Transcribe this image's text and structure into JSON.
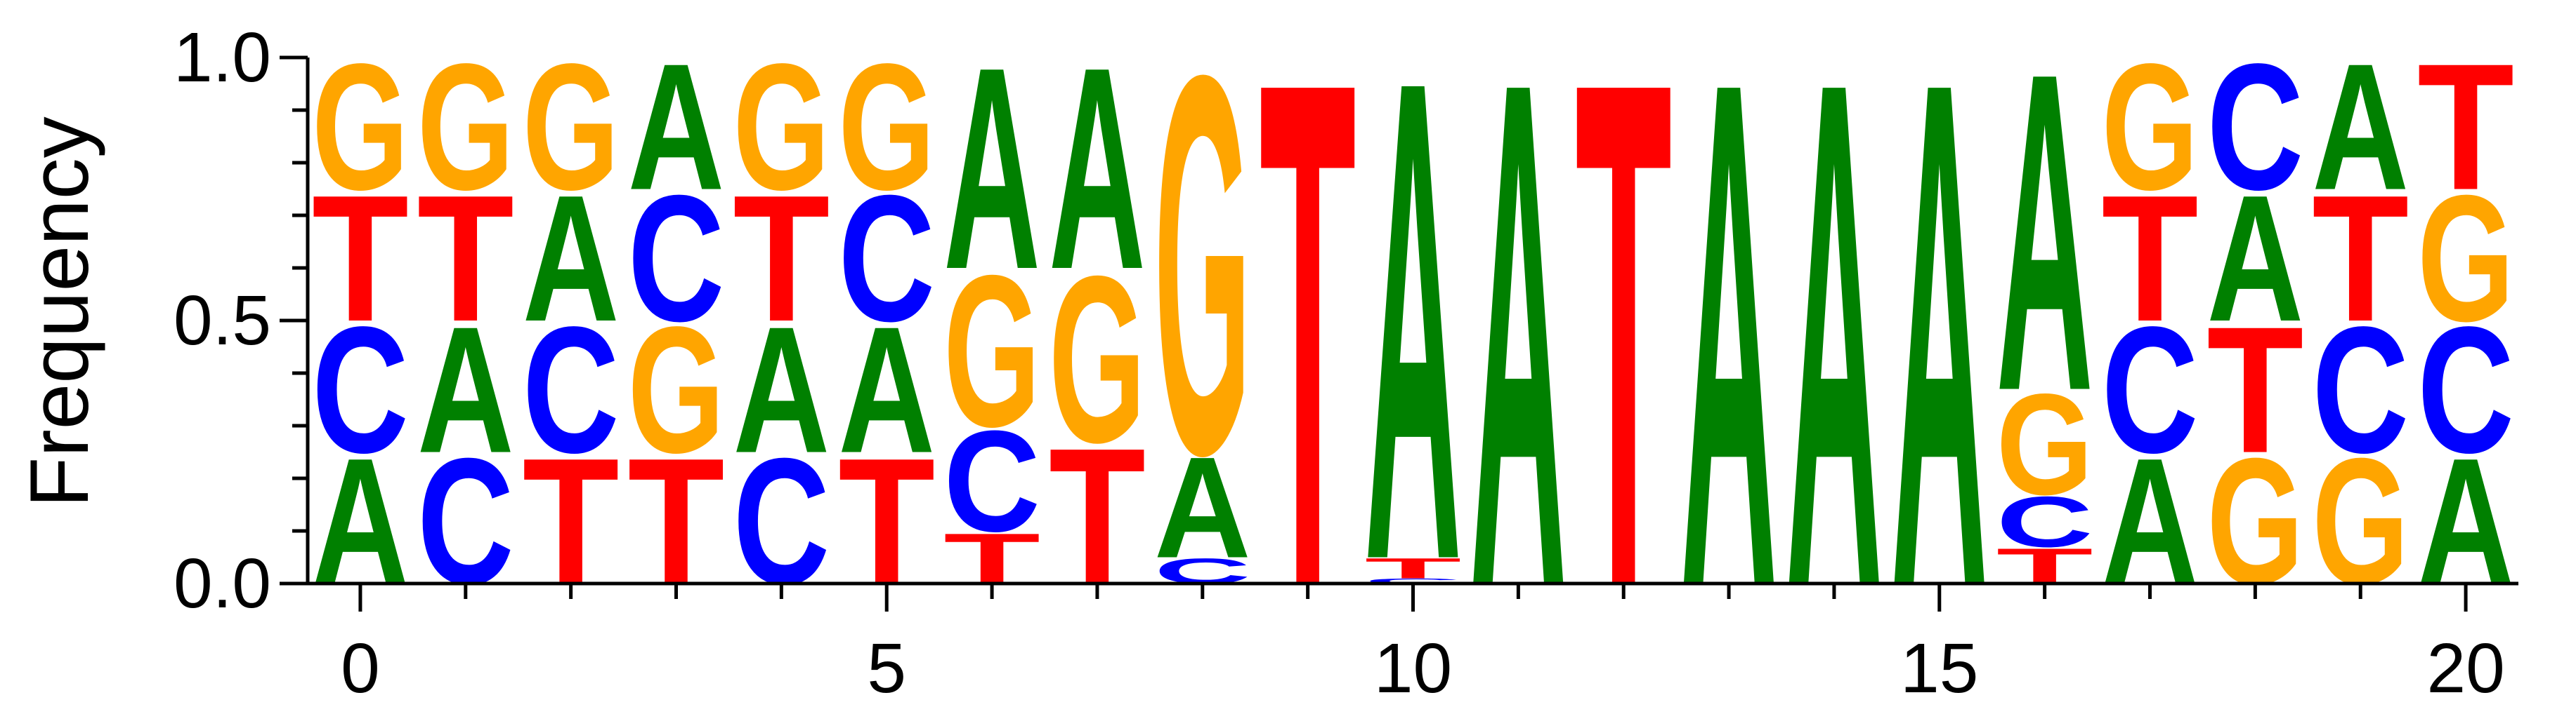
{
  "chart_data": {
    "type": "sequence-logo",
    "title": "",
    "xlabel": "",
    "ylabel": "Frequency",
    "ylim": [
      0.0,
      1.0
    ],
    "xlim": [
      -0.5,
      20.5
    ],
    "x_ticks": [
      0,
      5,
      10,
      15,
      20
    ],
    "y_ticks": [
      0.0,
      0.5,
      1.0
    ],
    "y_tick_labels": [
      "0.0",
      "0.5",
      "1.0"
    ],
    "colors": {
      "A": "#008000",
      "C": "#0000ff",
      "G": "#ffa500",
      "T": "#ff0000"
    },
    "positions": [
      {
        "pos": 0,
        "stack": [
          [
            "A",
            0.25
          ],
          [
            "C",
            0.25
          ],
          [
            "T",
            0.25
          ],
          [
            "G",
            0.25
          ]
        ]
      },
      {
        "pos": 1,
        "stack": [
          [
            "C",
            0.25
          ],
          [
            "A",
            0.25
          ],
          [
            "T",
            0.25
          ],
          [
            "G",
            0.25
          ]
        ]
      },
      {
        "pos": 2,
        "stack": [
          [
            "T",
            0.25
          ],
          [
            "C",
            0.25
          ],
          [
            "A",
            0.25
          ],
          [
            "G",
            0.25
          ]
        ]
      },
      {
        "pos": 3,
        "stack": [
          [
            "T",
            0.25
          ],
          [
            "G",
            0.25
          ],
          [
            "C",
            0.25
          ],
          [
            "A",
            0.25
          ]
        ]
      },
      {
        "pos": 4,
        "stack": [
          [
            "C",
            0.25
          ],
          [
            "A",
            0.25
          ],
          [
            "T",
            0.25
          ],
          [
            "G",
            0.25
          ]
        ]
      },
      {
        "pos": 5,
        "stack": [
          [
            "T",
            0.25
          ],
          [
            "A",
            0.25
          ],
          [
            "C",
            0.25
          ],
          [
            "G",
            0.25
          ]
        ]
      },
      {
        "pos": 6,
        "stack": [
          [
            "T",
            0.1
          ],
          [
            "C",
            0.2
          ],
          [
            "G",
            0.3
          ],
          [
            "A",
            0.4
          ]
        ]
      },
      {
        "pos": 7,
        "stack": [
          [
            "T",
            0.27
          ],
          [
            "G",
            0.33
          ],
          [
            "A",
            0.4
          ]
        ]
      },
      {
        "pos": 8,
        "stack": [
          [
            "C",
            0.05
          ],
          [
            "A",
            0.2
          ],
          [
            "G",
            0.75
          ]
        ]
      },
      {
        "pos": 9,
        "stack": [
          [
            "T",
            1.0
          ]
        ]
      },
      {
        "pos": 10,
        "stack": [
          [
            "C",
            0.01
          ],
          [
            "T",
            0.04
          ],
          [
            "A",
            0.95
          ]
        ]
      },
      {
        "pos": 11,
        "stack": [
          [
            "A",
            1.0
          ]
        ]
      },
      {
        "pos": 12,
        "stack": [
          [
            "T",
            1.0
          ]
        ]
      },
      {
        "pos": 13,
        "stack": [
          [
            "A",
            1.0
          ]
        ]
      },
      {
        "pos": 14,
        "stack": [
          [
            "A",
            1.0
          ]
        ]
      },
      {
        "pos": 15,
        "stack": [
          [
            "A",
            1.0
          ]
        ]
      },
      {
        "pos": 16,
        "stack": [
          [
            "T",
            0.07
          ],
          [
            "C",
            0.1
          ],
          [
            "G",
            0.2
          ],
          [
            "A",
            0.63
          ]
        ]
      },
      {
        "pos": 17,
        "stack": [
          [
            "A",
            0.25
          ],
          [
            "C",
            0.25
          ],
          [
            "T",
            0.25
          ],
          [
            "G",
            0.25
          ]
        ]
      },
      {
        "pos": 18,
        "stack": [
          [
            "G",
            0.25
          ],
          [
            "T",
            0.25
          ],
          [
            "A",
            0.25
          ],
          [
            "C",
            0.25
          ]
        ]
      },
      {
        "pos": 19,
        "stack": [
          [
            "G",
            0.25
          ],
          [
            "C",
            0.25
          ],
          [
            "T",
            0.25
          ],
          [
            "A",
            0.25
          ]
        ]
      },
      {
        "pos": 20,
        "stack": [
          [
            "A",
            0.25
          ],
          [
            "C",
            0.25
          ],
          [
            "G",
            0.25
          ],
          [
            "T",
            0.25
          ]
        ]
      }
    ]
  }
}
